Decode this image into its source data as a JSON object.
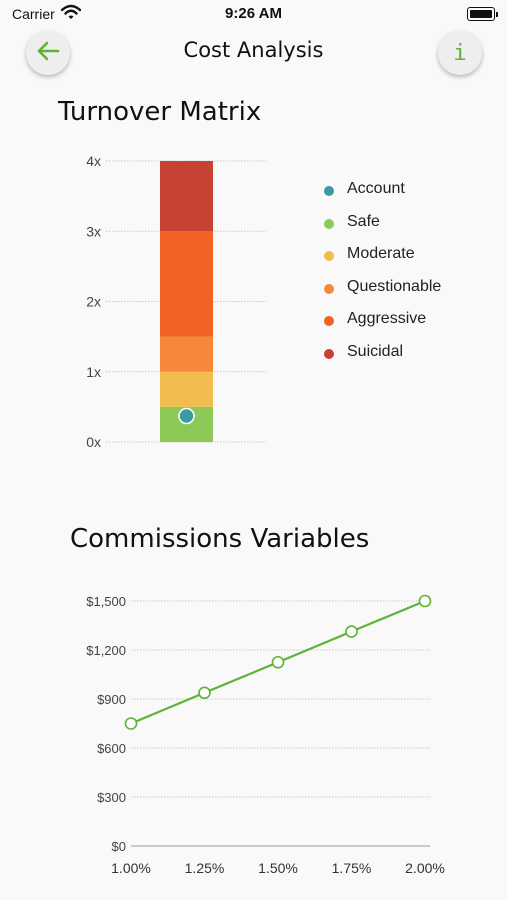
{
  "status_bar": {
    "carrier": "Carrier",
    "time": "9:26 AM"
  },
  "nav": {
    "title": "Cost Analysis",
    "info_label": "i"
  },
  "turnover": {
    "title": "Turnover Matrix",
    "legend": [
      {
        "label": "Account",
        "color": "#3a9aa0"
      },
      {
        "label": "Safe",
        "color": "#8cc957"
      },
      {
        "label": "Moderate",
        "color": "#f2bd4e"
      },
      {
        "label": "Questionable",
        "color": "#f7873a"
      },
      {
        "label": "Aggressive",
        "color": "#f26222"
      },
      {
        "label": "Suicidal",
        "color": "#c64232"
      }
    ]
  },
  "commissions": {
    "title": "Commissions Variables"
  },
  "chart_data": [
    {
      "type": "bar",
      "title": "Turnover Matrix",
      "y_tick_labels": [
        "0x",
        "1x",
        "2x",
        "3x",
        "4x"
      ],
      "ylim": [
        0,
        4
      ],
      "grid": true,
      "legend_placement": "right",
      "stacked_segments": [
        {
          "name": "Safe",
          "from": 0,
          "to": 0.5,
          "color": "#8cc957"
        },
        {
          "name": "Moderate",
          "from": 0.5,
          "to": 1.0,
          "color": "#f2bd4e"
        },
        {
          "name": "Questionable",
          "from": 1.0,
          "to": 1.5,
          "color": "#f7873a"
        },
        {
          "name": "Aggressive",
          "from": 1.5,
          "to": 3.0,
          "color": "#f26222"
        },
        {
          "name": "Suicidal",
          "from": 3.0,
          "to": 4.0,
          "color": "#c64232"
        }
      ],
      "marker": {
        "name": "Account",
        "value": 0.37,
        "color": "#3a9aa0"
      }
    },
    {
      "type": "line",
      "title": "Commissions Variables",
      "x": [
        1.0,
        1.25,
        1.5,
        1.75,
        2.0
      ],
      "x_tick_labels": [
        "1.00%",
        "1.25%",
        "1.50%",
        "1.75%",
        "2.00%"
      ],
      "y": [
        750,
        938,
        1125,
        1313,
        1500
      ],
      "y_ticks": [
        0,
        300,
        600,
        900,
        1200,
        1500
      ],
      "y_tick_labels": [
        "$0",
        "$300",
        "$600",
        "$900",
        "$1,200",
        "$1,500"
      ],
      "ylim": [
        0,
        1500
      ],
      "grid": true,
      "line_color": "#5cb336"
    }
  ]
}
